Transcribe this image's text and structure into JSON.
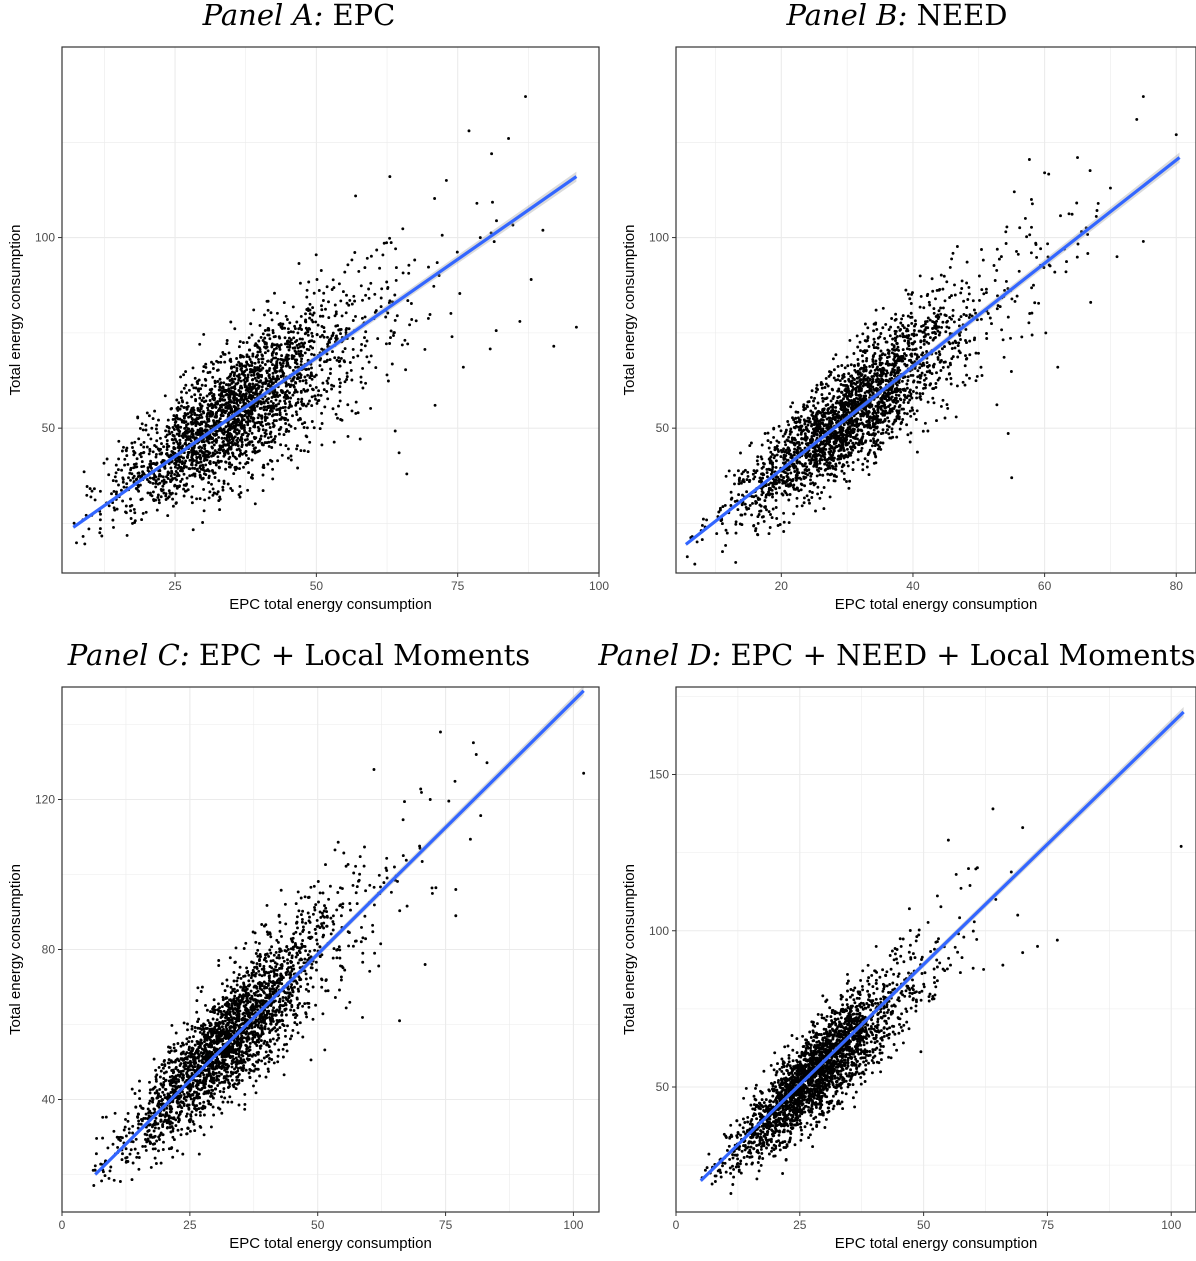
{
  "chart_data": [
    {
      "type": "scatter",
      "title_prefix": "Panel A:",
      "title": "EPC",
      "xlabel": "EPC total energy consumption",
      "ylabel": "Total energy consumption",
      "xlim": [
        5,
        100
      ],
      "ylim": [
        12,
        150
      ],
      "xticks": [
        25,
        50,
        75,
        100
      ],
      "xtick_labels": [
        "25",
        "50",
        "75",
        "100"
      ],
      "yticks": [
        50,
        100
      ],
      "ytick_labels": [
        "50",
        "100"
      ],
      "grid": true,
      "cloud": {
        "x_center": 34,
        "x_spread": 8,
        "x_min": 7,
        "x_max": 96,
        "intercept": 18.5,
        "slope": 1.0,
        "noise": 9,
        "n": 2600
      },
      "outliers": [
        [
          96,
          76.5
        ],
        [
          92,
          71.5
        ],
        [
          88,
          89
        ],
        [
          84,
          126
        ],
        [
          87,
          137
        ],
        [
          81,
          122
        ],
        [
          77,
          128
        ],
        [
          73,
          115
        ],
        [
          74,
          74
        ],
        [
          66,
          38
        ],
        [
          63,
          116
        ],
        [
          79,
          100
        ],
        [
          86,
          78
        ],
        [
          71,
          56
        ],
        [
          76,
          66
        ]
      ],
      "fit": {
        "x": [
          7,
          96
        ],
        "y": [
          24,
          116
        ]
      }
    },
    {
      "type": "scatter",
      "title_prefix": "Panel B:",
      "title": "NEED",
      "xlabel": "EPC total energy consumption",
      "ylabel": "Total energy consumption",
      "xlim": [
        4,
        83
      ],
      "ylim": [
        12,
        150
      ],
      "xticks": [
        20,
        40,
        60,
        80
      ],
      "xtick_labels": [
        "20",
        "40",
        "60",
        "80"
      ],
      "yticks": [
        50,
        100
      ],
      "ytick_labels": [
        "50",
        "100"
      ],
      "grid": true,
      "cloud": {
        "x_center": 29,
        "x_spread": 7,
        "x_min": 5.5,
        "x_max": 80,
        "intercept": 12.5,
        "slope": 1.35,
        "noise": 7.5,
        "n": 2600
      },
      "outliers": [
        [
          75,
          137
        ],
        [
          74,
          131
        ],
        [
          80,
          127
        ],
        [
          65,
          121
        ],
        [
          60,
          117
        ],
        [
          70,
          113
        ],
        [
          75,
          99
        ],
        [
          63,
          97
        ],
        [
          55,
          37
        ],
        [
          67,
          83
        ],
        [
          71,
          95
        ],
        [
          58,
          110
        ],
        [
          62,
          66
        ]
      ],
      "fit": {
        "x": [
          5.5,
          80.5
        ],
        "y": [
          19.5,
          121
        ]
      }
    },
    {
      "type": "scatter",
      "title_prefix": "Panel C:",
      "title": "EPC + Local Moments",
      "xlabel": "EPC total energy consumption",
      "ylabel": "Total energy consumption",
      "xlim": [
        0,
        105
      ],
      "ylim": [
        10,
        150
      ],
      "xticks": [
        0,
        25,
        50,
        75,
        100
      ],
      "xtick_labels": [
        "0",
        "25",
        "50",
        "75",
        "100"
      ],
      "yticks": [
        40,
        80,
        120
      ],
      "ytick_labels": [
        "40",
        "80",
        "120"
      ],
      "grid": true,
      "cloud": {
        "x_center": 31,
        "x_spread": 8,
        "x_min": 6,
        "x_max": 100,
        "intercept": 12,
        "slope": 1.35,
        "noise": 8.5,
        "n": 2600
      },
      "outliers": [
        [
          102,
          127
        ],
        [
          81,
          132
        ],
        [
          74,
          138
        ],
        [
          72,
          120
        ],
        [
          77,
          96
        ],
        [
          71,
          76
        ],
        [
          66,
          61
        ],
        [
          61,
          128
        ],
        [
          77,
          89
        ],
        [
          65,
          102
        ],
        [
          70,
          107
        ]
      ],
      "fit": {
        "x": [
          6.5,
          102
        ],
        "y": [
          20,
          149
        ]
      }
    },
    {
      "type": "scatter",
      "title_prefix": "Panel D:",
      "title": "EPC + NEED + Local Moments",
      "xlabel": "EPC total energy consumption",
      "ylabel": "Total energy consumption",
      "xlim": [
        0,
        105
      ],
      "ylim": [
        10,
        178
      ],
      "xticks": [
        0,
        25,
        50,
        75,
        100
      ],
      "xtick_labels": [
        "0",
        "25",
        "50",
        "75",
        "100"
      ],
      "yticks": [
        50,
        100,
        150
      ],
      "ytick_labels": [
        "50",
        "100",
        "150"
      ],
      "grid": true,
      "cloud": {
        "x_center": 27,
        "x_spread": 6.5,
        "x_min": 5,
        "x_max": 102,
        "intercept": 12,
        "slope": 1.5,
        "noise": 8.5,
        "n": 2600
      },
      "outliers": [
        [
          102,
          127
        ],
        [
          70,
          133
        ],
        [
          64,
          139
        ],
        [
          69,
          105
        ],
        [
          73,
          95
        ],
        [
          77,
          97
        ],
        [
          66,
          89
        ],
        [
          70,
          93
        ],
        [
          55,
          129
        ],
        [
          60,
          88
        ]
      ],
      "fit": {
        "x": [
          5,
          102.5
        ],
        "y": [
          20,
          170
        ]
      }
    }
  ]
}
